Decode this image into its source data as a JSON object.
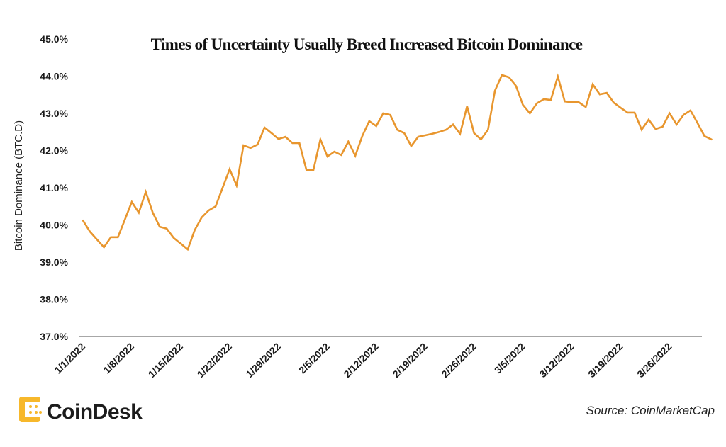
{
  "chart_data": {
    "type": "line",
    "title": "Times of Uncertainty Usually Breed Increased Bitcoin Dominance",
    "xlabel": "",
    "ylabel": "Bitcoin Dominance (BTC.D)",
    "ylim": [
      37.0,
      45.0
    ],
    "yticks": [
      "37.0%",
      "38.0%",
      "39.0%",
      "40.0%",
      "41.0%",
      "42.0%",
      "43.0%",
      "44.0%",
      "45.0%"
    ],
    "ytick_values": [
      37,
      38,
      39,
      40,
      41,
      42,
      43,
      44,
      45
    ],
    "x_start": "1/1/2022",
    "x_end": "3/31/2022",
    "xticks": [
      "1/1/2022",
      "1/8/2022",
      "1/15/2022",
      "1/22/2022",
      "1/29/2022",
      "2/5/2022",
      "2/12/2022",
      "2/19/2022",
      "2/26/2022",
      "3/5/2022",
      "3/12/2022",
      "3/19/2022",
      "3/26/2022"
    ],
    "xtick_day_index": [
      0,
      7,
      14,
      21,
      28,
      35,
      42,
      49,
      56,
      63,
      70,
      77,
      84
    ],
    "grid": false,
    "legend": "none",
    "series": [
      {
        "name": "Bitcoin Dominance (BTC.D)",
        "color": "#E8962E",
        "values": [
          40.12,
          39.82,
          39.61,
          39.4,
          39.67,
          39.67,
          40.14,
          40.62,
          40.33,
          40.89,
          40.33,
          39.95,
          39.9,
          39.65,
          39.5,
          39.34,
          39.86,
          40.2,
          40.39,
          40.5,
          41.0,
          41.5,
          41.06,
          42.14,
          42.07,
          42.16,
          42.62,
          42.47,
          42.31,
          42.37,
          42.2,
          42.2,
          41.48,
          41.48,
          42.3,
          41.84,
          41.97,
          41.88,
          42.24,
          41.86,
          42.39,
          42.79,
          42.66,
          43.0,
          42.96,
          42.56,
          42.47,
          42.12,
          42.37,
          42.41,
          42.45,
          42.5,
          42.56,
          42.7,
          42.45,
          43.19,
          42.47,
          42.3,
          42.56,
          43.61,
          44.03,
          43.97,
          43.74,
          43.23,
          43.0,
          43.27,
          43.38,
          43.36,
          43.99,
          43.32,
          43.3,
          43.3,
          43.17,
          43.78,
          43.51,
          43.55,
          43.29,
          43.15,
          43.02,
          43.02,
          42.56,
          42.83,
          42.58,
          42.64,
          43.0,
          42.7,
          42.96,
          43.08,
          42.74,
          42.39,
          42.3
        ]
      }
    ],
    "annotations": [
      "Source: CoinMarketCap"
    ]
  },
  "footer": {
    "brand_name": "CoinDesk",
    "source": "Source: CoinMarketCap"
  },
  "colors": {
    "line": "#E8962E",
    "brand_yellow": "#F7B82B",
    "axis": "#888888",
    "text": "#1a1a1a"
  }
}
